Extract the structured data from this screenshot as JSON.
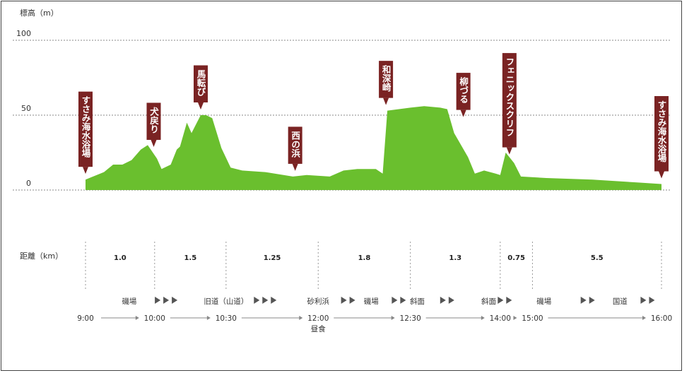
{
  "chart_data": {
    "type": "area",
    "ylabel": "標高（m）",
    "y_ticks": [
      "100",
      "50",
      "0"
    ],
    "ylim": [
      0,
      100
    ],
    "xlabel": "距離（km）",
    "color": "#6abf2e",
    "label_color": "#7a2323",
    "profile": [
      [
        0.0,
        7
      ],
      [
        0.4,
        12
      ],
      [
        0.6,
        17
      ],
      [
        0.8,
        17
      ],
      [
        1.0,
        20
      ],
      [
        1.2,
        27
      ],
      [
        1.35,
        30
      ],
      [
        1.55,
        21
      ],
      [
        1.65,
        14
      ],
      [
        1.85,
        17
      ],
      [
        1.98,
        27
      ],
      [
        2.05,
        29
      ],
      [
        2.2,
        45
      ],
      [
        2.3,
        38
      ],
      [
        2.5,
        50
      ],
      [
        2.62,
        50
      ],
      [
        2.75,
        48
      ],
      [
        2.95,
        28
      ],
      [
        3.15,
        15
      ],
      [
        3.4,
        13
      ],
      [
        3.9,
        12
      ],
      [
        4.5,
        9
      ],
      [
        4.8,
        10
      ],
      [
        5.3,
        9
      ],
      [
        5.6,
        13
      ],
      [
        5.9,
        14
      ],
      [
        6.3,
        14
      ],
      [
        6.45,
        11
      ],
      [
        6.55,
        53
      ],
      [
        7.05,
        55
      ],
      [
        7.35,
        56
      ],
      [
        7.7,
        55
      ],
      [
        7.85,
        54
      ],
      [
        8.0,
        38
      ],
      [
        8.3,
        22
      ],
      [
        8.45,
        11
      ],
      [
        8.65,
        13
      ],
      [
        8.9,
        11
      ],
      [
        9.0,
        10
      ],
      [
        9.12,
        25
      ],
      [
        9.3,
        18
      ],
      [
        9.45,
        9
      ],
      [
        10.0,
        8
      ],
      [
        11.0,
        7
      ],
      [
        12.0,
        5
      ],
      [
        12.5,
        4
      ]
    ],
    "landmarks": [
      {
        "name": "すさみ海水浴場",
        "x": 0.0,
        "y": 7
      },
      {
        "name": "犬戻り",
        "x": 1.48,
        "y": 25
      },
      {
        "name": "馬転び",
        "x": 2.5,
        "y": 50
      },
      {
        "name": "西の浜",
        "x": 4.55,
        "y": 9
      },
      {
        "name": "和深崎",
        "x": 6.52,
        "y": 53
      },
      {
        "name": "柳づる",
        "x": 8.2,
        "y": 45
      },
      {
        "name": "フェニックスクリフ",
        "x": 9.2,
        "y": 20
      },
      {
        "name": "すさみ海水浴場",
        "x": 12.5,
        "y": 4
      }
    ],
    "segments": [
      {
        "distance": "1.0",
        "start": 0.0,
        "end": 1.5
      },
      {
        "distance": "1.5",
        "start": 1.5,
        "end": 3.05
      },
      {
        "distance": "1.25",
        "start": 3.05,
        "end": 5.05
      },
      {
        "distance": "1.8",
        "start": 5.05,
        "end": 7.05
      },
      {
        "distance": "1.3",
        "start": 7.05,
        "end": 9.0
      },
      {
        "distance": "0.75",
        "start": 9.0,
        "end": 9.7
      },
      {
        "distance": "5.5",
        "start": 9.7,
        "end": 12.5
      }
    ],
    "terrain": [
      {
        "label": "磯場",
        "x": 0.95
      },
      {
        "label": "旧道（山道）",
        "x": 3.05
      },
      {
        "label": "砂利浜",
        "x": 5.05
      },
      {
        "label": "磯場",
        "x": 6.2
      },
      {
        "label": "斜面",
        "x": 7.2
      },
      {
        "label": "斜面",
        "x": 8.75
      },
      {
        "label": "磯場",
        "x": 9.95
      },
      {
        "label": "国道",
        "x": 11.6
      }
    ],
    "terrain_arrows": [
      {
        "x": 1.75,
        "count": 3
      },
      {
        "x": 3.9,
        "count": 3
      },
      {
        "x": 5.7,
        "count": 2
      },
      {
        "x": 6.8,
        "count": 2
      },
      {
        "x": 7.85,
        "count": 2
      },
      {
        "x": 9.1,
        "count": 2
      },
      {
        "x": 10.9,
        "count": 2
      },
      {
        "x": 12.2,
        "count": 2
      }
    ],
    "times": [
      {
        "label": "9:00",
        "x": 0.0
      },
      {
        "label": "10:00",
        "x": 1.5
      },
      {
        "label": "10:30",
        "x": 3.05
      },
      {
        "label": "12:00",
        "x": 5.05
      },
      {
        "label": "12:30",
        "x": 7.05
      },
      {
        "label": "14:00",
        "x": 9.0
      },
      {
        "label": "15:00",
        "x": 9.7
      },
      {
        "label": "16:00",
        "x": 12.5
      }
    ],
    "lunch_note": "昼食"
  }
}
